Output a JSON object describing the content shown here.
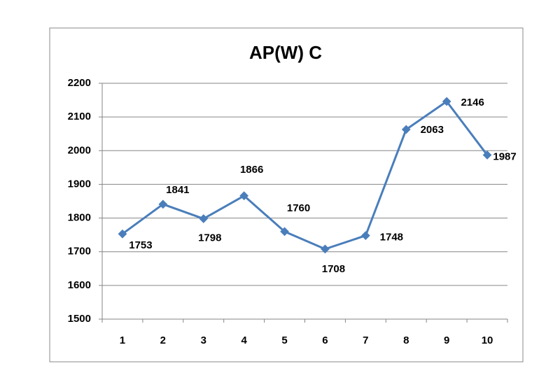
{
  "chart_data": {
    "type": "line",
    "title": "AP(W) C",
    "categories": [
      "1",
      "2",
      "3",
      "4",
      "5",
      "6",
      "7",
      "8",
      "9",
      "10"
    ],
    "series": [
      {
        "color": "#4a7ebb",
        "values": [
          1753,
          1841,
          1798,
          1866,
          1760,
          1708,
          1748,
          2063,
          2146,
          1987
        ]
      }
    ],
    "ylim": [
      1500,
      2200
    ],
    "yticks": [
      1500,
      1600,
      1700,
      1800,
      1900,
      2000,
      2100,
      2200
    ],
    "grid": true
  }
}
